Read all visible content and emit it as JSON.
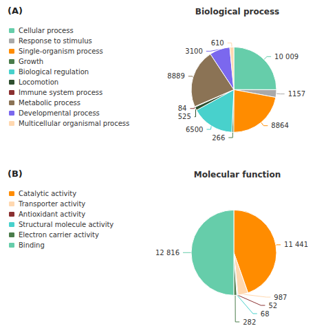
{
  "chart_data": [
    {
      "type": "pie",
      "title": "Biological process",
      "annotations": [
        "(A)"
      ],
      "categories": [
        "Cellular process",
        "Response to stimulus",
        "Single-organism process",
        "Growth",
        "Biological regulation",
        "Locomotion",
        "Immune system process",
        "Metabolic process",
        "Developmental process",
        "Multicellular organismal process"
      ],
      "values": [
        10009,
        1157,
        8864,
        266,
        6500,
        525,
        84,
        8889,
        3100,
        610
      ],
      "value_labels": [
        "10 009",
        "1157",
        "8864",
        "266",
        "6500",
        "525",
        "84",
        "8889",
        "3100",
        "610"
      ],
      "colors": [
        "#66cdaa",
        "#a9a9a9",
        "#ff8c00",
        "#4a7c4a",
        "#48d1cc",
        "#2f4f2f",
        "#8b3030",
        "#8b7355",
        "#7b68ee",
        "#ffd8b0"
      ],
      "data_labels": true,
      "legend": "left"
    },
    {
      "type": "pie",
      "title": "Molecular function",
      "annotations": [
        "(B)"
      ],
      "categories": [
        "Catalytic activity",
        "Transporter activity",
        "Antioxidant activity",
        "Structural molecule activity",
        "Electron carrier activity",
        "Binding"
      ],
      "values": [
        11441,
        987,
        52,
        68,
        282,
        12816
      ],
      "value_labels": [
        "11 441",
        "987",
        "52",
        "68",
        "282",
        "12 816"
      ],
      "colors": [
        "#ff8c00",
        "#ffd8b0",
        "#8b3030",
        "#48d1cc",
        "#4a7c4a",
        "#66cdaa"
      ],
      "data_labels": true,
      "legend": "left"
    }
  ]
}
